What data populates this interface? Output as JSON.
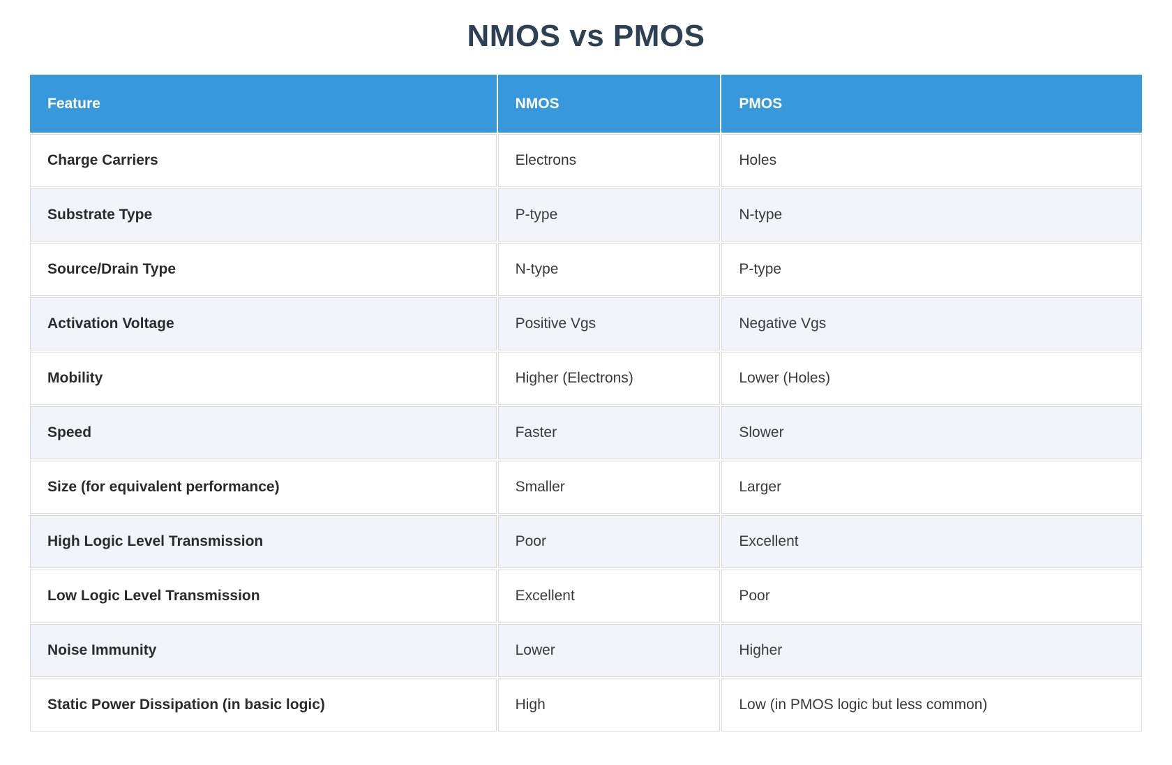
{
  "title": "NMOS vs PMOS",
  "columns": {
    "feature": "Feature",
    "nmos": "NMOS",
    "pmos": "PMOS"
  },
  "rows": [
    {
      "feature": "Charge Carriers",
      "nmos": "Electrons",
      "pmos": "Holes"
    },
    {
      "feature": "Substrate Type",
      "nmos": "P-type",
      "pmos": "N-type"
    },
    {
      "feature": "Source/Drain Type",
      "nmos": "N-type",
      "pmos": "P-type"
    },
    {
      "feature": "Activation Voltage",
      "nmos": "Positive Vgs",
      "pmos": "Negative Vgs"
    },
    {
      "feature": "Mobility",
      "nmos": "Higher (Electrons)",
      "pmos": "Lower (Holes)"
    },
    {
      "feature": "Speed",
      "nmos": "Faster",
      "pmos": "Slower"
    },
    {
      "feature": "Size (for equivalent performance)",
      "nmos": "Smaller",
      "pmos": "Larger"
    },
    {
      "feature": "High Logic Level Transmission",
      "nmos": "Poor",
      "pmos": "Excellent"
    },
    {
      "feature": "Low Logic Level Transmission",
      "nmos": "Excellent",
      "pmos": "Poor"
    },
    {
      "feature": "Noise Immunity",
      "nmos": "Lower",
      "pmos": "Higher"
    },
    {
      "feature": "Static Power Dissipation (in basic logic)",
      "nmos": "High",
      "pmos": "Low (in PMOS logic but less common)"
    }
  ],
  "colors": {
    "header_bg": "#3798db",
    "header_text": "#ffffff",
    "title_text": "#2e4053",
    "row_alt_bg": "#f0f4f8",
    "row_bg": "#ffffff",
    "border": "#d9d9d9",
    "feature_text": "#2b2b2b",
    "value_text": "#3a3a3a"
  },
  "chart_data": {
    "type": "table",
    "title": "NMOS vs PMOS",
    "columns": [
      "Feature",
      "NMOS",
      "PMOS"
    ],
    "rows": [
      [
        "Charge Carriers",
        "Electrons",
        "Holes"
      ],
      [
        "Substrate Type",
        "P-type",
        "N-type"
      ],
      [
        "Source/Drain Type",
        "N-type",
        "P-type"
      ],
      [
        "Activation Voltage",
        "Positive Vgs",
        "Negative Vgs"
      ],
      [
        "Mobility",
        "Higher (Electrons)",
        "Lower (Holes)"
      ],
      [
        "Speed",
        "Faster",
        "Slower"
      ],
      [
        "Size (for equivalent performance)",
        "Smaller",
        "Larger"
      ],
      [
        "High Logic Level Transmission",
        "Poor",
        "Excellent"
      ],
      [
        "Low Logic Level Transmission",
        "Excellent",
        "Poor"
      ],
      [
        "Noise Immunity",
        "Lower",
        "Higher"
      ],
      [
        "Static Power Dissipation (in basic logic)",
        "High",
        "Low (in PMOS logic but less common)"
      ]
    ],
    "layout": {
      "header_position": "top",
      "alternating_row_shading": true,
      "text_align": "left"
    }
  }
}
